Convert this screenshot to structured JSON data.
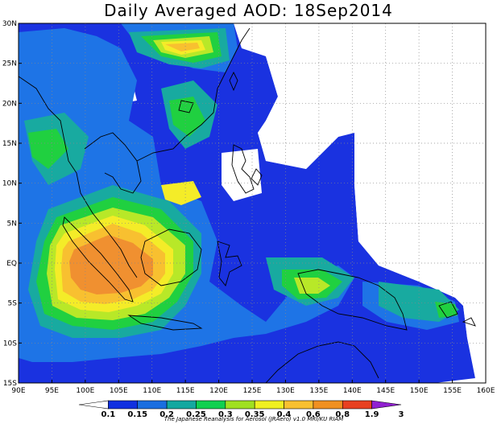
{
  "title": "Daily Averaged AOD: 18Sep2014",
  "credit": "The Japanese Reanalysis for Aerosol (JRAero) v1.0 MRI/KU RIAM",
  "axes": {
    "lon_labels": [
      "90E",
      "95E",
      "100E",
      "105E",
      "110E",
      "115E",
      "120E",
      "125E",
      "130E",
      "135E",
      "140E",
      "145E",
      "150E",
      "155E",
      "160E"
    ],
    "lat_labels": [
      "30N",
      "25N",
      "20N",
      "15N",
      "10N",
      "5N",
      "EQ",
      "5S",
      "10S",
      "15S"
    ]
  },
  "colorbar": {
    "labels": [
      "0.1",
      "0.15",
      "0.2",
      "0.25",
      "0.3",
      "0.35",
      "0.4",
      "0.6",
      "0.8",
      "1.9",
      "3"
    ],
    "colors": [
      "#ffffff",
      "#1030e0",
      "#1a6ee0",
      "#14a8a0",
      "#10d050",
      "#a0e020",
      "#f0f020",
      "#f8c030",
      "#f09020",
      "#e84020",
      "#9020d0"
    ]
  },
  "palette": {
    "very_low": "#1a32e0",
    "low": "#1e74e6",
    "moderate": "#18aaa0",
    "elevated": "#20d040",
    "high": "#b8e828",
    "higher": "#f4ec28",
    "very_high": "#f8c030",
    "extreme": "#f09030"
  }
}
